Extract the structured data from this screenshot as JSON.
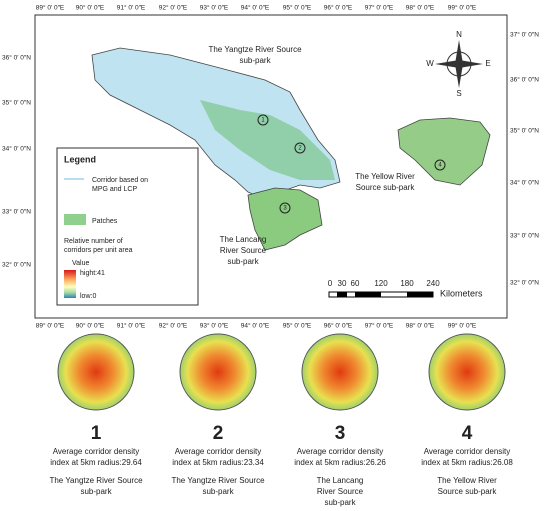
{
  "map": {
    "top_labels": [
      "89° 0′ 0″E",
      "90° 0′ 0″E",
      "91° 0′ 0″E",
      "92° 0′ 0″E",
      "93° 0′ 0″E",
      "94° 0′ 0″E",
      "95° 0′ 0″E",
      "96° 0′ 0″E",
      "97° 0′ 0″E",
      "98° 0′ 0″E",
      "99° 0′ 0″E"
    ],
    "left_labels": [
      "36° 0′ 0″N",
      "35° 0′ 0″N",
      "34° 0′ 0″N",
      "33° 0′ 0″N",
      "32° 0′ 0″N"
    ],
    "right_labels": [
      "37° 0′ 0″N",
      "36° 0′ 0″N",
      "35° 0′ 0″N",
      "34° 0′ 0″N",
      "33° 0′ 0″N",
      "32° 0′ 0″N"
    ],
    "regions": [
      [
        "The Yangtze River Source",
        "sub-park"
      ],
      [
        "The Yellow River",
        "Source sub-park"
      ],
      [
        "The Lancang",
        "River Source",
        "sub-park"
      ]
    ],
    "markers": [
      "1",
      "2",
      "3",
      "4"
    ],
    "compass": [
      "N",
      "E",
      "S",
      "W"
    ],
    "scale": {
      "ticks": [
        "0",
        "30",
        "60",
        "120",
        "180",
        "240"
      ],
      "unit": "Kilometers"
    },
    "legend": {
      "title": "Legend",
      "corridor": [
        "Corridor based on",
        "MPG and LCP"
      ],
      "patches": "Patches",
      "density": [
        "Relative number of",
        "corridors per unit area"
      ],
      "value": "Value",
      "high": "hight:41",
      "low": "low:0"
    }
  },
  "panels": [
    {
      "number": "1",
      "description": [
        "Average corridor density",
        "index at 5km radius:29.64"
      ],
      "name": [
        "The Yangtze River Source",
        "sub-park"
      ]
    },
    {
      "number": "2",
      "description": [
        "Average corridor density",
        "index at 5km radius:23.34"
      ],
      "name": [
        "The Yangtze River Source",
        "sub-park"
      ]
    },
    {
      "number": "3",
      "description": [
        "Average corridor density",
        "index at 5km radius:26.26"
      ],
      "name": [
        "The Lancang",
        "River Source",
        "sub-park"
      ]
    },
    {
      "number": "4",
      "description": [
        "Average corridor density",
        "index at 5km radius:26.08"
      ],
      "name": [
        "The Yellow River",
        "Source sub-park"
      ]
    }
  ]
}
